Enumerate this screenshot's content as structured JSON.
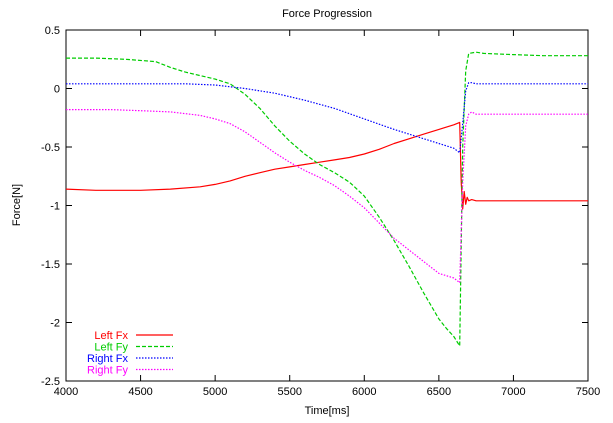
{
  "chart_data": {
    "type": "line",
    "title": "Force Progression",
    "xlabel": "Time[ms]",
    "ylabel": "Force[N]",
    "xlim": [
      4000,
      7500
    ],
    "ylim": [
      -2.5,
      0.5
    ],
    "xticks": [
      4000,
      4500,
      5000,
      5500,
      6000,
      6500,
      7000,
      7500
    ],
    "yticks": [
      -2.5,
      -2,
      -1.5,
      -1,
      -0.5,
      0,
      0.5
    ],
    "xtick_labels": [
      "4000",
      "4500",
      "5000",
      "5500",
      "6000",
      "6500",
      "7000",
      "7500"
    ],
    "ytick_labels": [
      "-2.5",
      "-2",
      "-1.5",
      "-1",
      "-0.5",
      "0",
      "0.5"
    ],
    "grid": false,
    "legend_position": "bottom-left",
    "series": [
      {
        "name": "Left Fx",
        "color": "#ff0000",
        "dash": "solid",
        "x": [
          4000,
          4200,
          4500,
          4700,
          4900,
          5000,
          5100,
          5200,
          5300,
          5400,
          5500,
          5600,
          5700,
          5800,
          5900,
          6000,
          6100,
          6200,
          6300,
          6400,
          6500,
          6600,
          6640,
          6650,
          6660,
          6670,
          6680,
          6690,
          6700,
          6720,
          6750,
          6800,
          6900,
          7000,
          7200,
          7400,
          7500
        ],
        "y": [
          -0.86,
          -0.87,
          -0.87,
          -0.86,
          -0.84,
          -0.82,
          -0.79,
          -0.75,
          -0.72,
          -0.69,
          -0.67,
          -0.65,
          -0.63,
          -0.61,
          -0.59,
          -0.56,
          -0.52,
          -0.47,
          -0.43,
          -0.39,
          -0.35,
          -0.31,
          -0.29,
          -0.8,
          -1.03,
          -0.88,
          -0.99,
          -0.93,
          -0.96,
          -0.95,
          -0.96,
          -0.96,
          -0.96,
          -0.96,
          -0.96,
          -0.96,
          -0.96
        ]
      },
      {
        "name": "Left Fy",
        "color": "#00cc00",
        "dash": "dashed",
        "x": [
          4000,
          4200,
          4400,
          4600,
          4700,
          4800,
          4900,
          5000,
          5100,
          5200,
          5300,
          5400,
          5500,
          5600,
          5700,
          5800,
          5900,
          6000,
          6100,
          6200,
          6300,
          6400,
          6500,
          6550,
          6600,
          6640,
          6660,
          6680,
          6700,
          6750,
          6800,
          7000,
          7200,
          7400,
          7500
        ],
        "y": [
          0.26,
          0.26,
          0.25,
          0.23,
          0.18,
          0.14,
          0.11,
          0.08,
          0.04,
          -0.05,
          -0.17,
          -0.32,
          -0.45,
          -0.56,
          -0.65,
          -0.72,
          -0.8,
          -0.92,
          -1.1,
          -1.3,
          -1.52,
          -1.75,
          -1.97,
          -2.05,
          -2.12,
          -2.2,
          -0.5,
          0.15,
          0.3,
          0.31,
          0.3,
          0.29,
          0.28,
          0.28,
          0.28
        ]
      },
      {
        "name": "Right Fx",
        "color": "#0000ff",
        "dash": "dotted",
        "x": [
          4000,
          4500,
          4800,
          5000,
          5200,
          5400,
          5600,
          5800,
          6000,
          6200,
          6400,
          6500,
          6600,
          6640,
          6660,
          6680,
          6700,
          6720,
          6750,
          6800,
          7000,
          7200,
          7400,
          7500
        ],
        "y": [
          0.04,
          0.04,
          0.04,
          0.03,
          0.0,
          -0.04,
          -0.1,
          -0.17,
          -0.26,
          -0.35,
          -0.43,
          -0.47,
          -0.51,
          -0.55,
          -0.3,
          -0.02,
          0.05,
          0.05,
          0.04,
          0.04,
          0.04,
          0.04,
          0.04,
          0.04
        ]
      },
      {
        "name": "Right Fy",
        "color": "#ff00ff",
        "dash": "dotted",
        "x": [
          4000,
          4300,
          4500,
          4700,
          4900,
          5000,
          5100,
          5200,
          5300,
          5400,
          5500,
          5600,
          5700,
          5800,
          5900,
          6000,
          6100,
          6200,
          6300,
          6400,
          6500,
          6600,
          6640,
          6660,
          6680,
          6700,
          6720,
          6750,
          6800,
          7000,
          7200,
          7400,
          7500
        ],
        "y": [
          -0.18,
          -0.18,
          -0.19,
          -0.2,
          -0.23,
          -0.26,
          -0.3,
          -0.37,
          -0.46,
          -0.55,
          -0.63,
          -0.7,
          -0.76,
          -0.83,
          -0.92,
          -1.02,
          -1.15,
          -1.28,
          -1.38,
          -1.48,
          -1.58,
          -1.62,
          -1.66,
          -0.8,
          -0.32,
          -0.22,
          -0.2,
          -0.22,
          -0.22,
          -0.22,
          -0.22,
          -0.22,
          -0.22
        ]
      }
    ]
  }
}
